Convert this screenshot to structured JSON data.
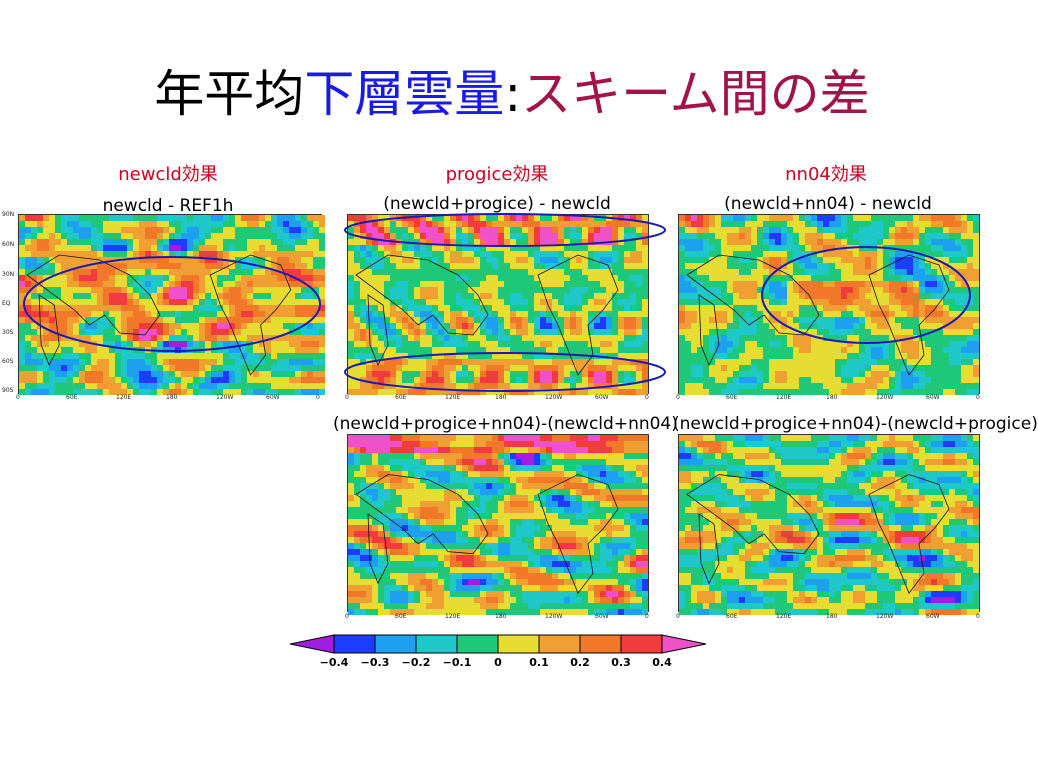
{
  "title": {
    "part1": "年平均",
    "part2": "下層雲量",
    "part3": ":",
    "part4": "スキーム間の差"
  },
  "effect_labels": {
    "newcld": "newcld効果",
    "progice": "progice効果",
    "nn04": "nn04効果"
  },
  "panels": {
    "p1_title": "newcld - REF1h",
    "p2_title": "(newcld+progice) - newcld",
    "p3_title": "(newcld+nn04) - newcld",
    "p4_title": "(newcld+progice+nn04)-(newcld+nn04)",
    "p5_title": "(newcld+progice+nn04)-(newcld+progice)"
  },
  "lat_labels": [
    "90N",
    "60N",
    "30N",
    "EQ",
    "30S",
    "60S",
    "90S"
  ],
  "lon_labels": [
    "0",
    "60E",
    "120E",
    "180",
    "120W",
    "60W",
    "0"
  ],
  "colorbar": {
    "ticks": [
      "−0.4",
      "−0.3",
      "−0.2",
      "−0.1",
      "0",
      "0.1",
      "0.2",
      "0.3",
      "0.4"
    ],
    "colors": [
      "#a01ee0",
      "#1e3cff",
      "#1ea0f0",
      "#1ec8c8",
      "#1ec878",
      "#e6dc32",
      "#f0a032",
      "#f07828",
      "#f03c3c",
      "#f050c8"
    ]
  }
}
